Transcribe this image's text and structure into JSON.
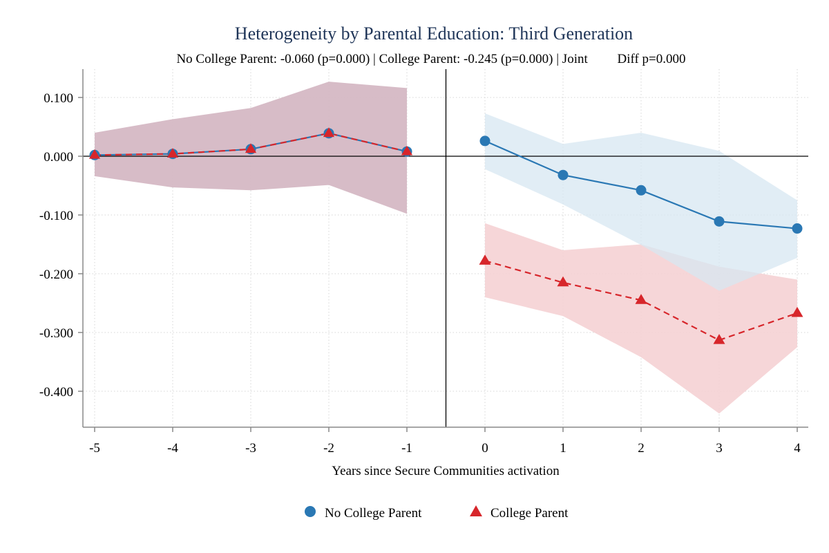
{
  "chart_data": {
    "type": "line",
    "title": "Heterogeneity by Parental Education: Third Generation",
    "subtitle_parts": [
      "No College Parent: -0.060 (p=0.000)",
      "College Parent: -0.245 (p=0.000)",
      "Joint",
      "Diff p=0.000"
    ],
    "xlabel": "Years since Secure Communities activation",
    "ylabel": "",
    "x": [
      -5,
      -4,
      -3,
      -2,
      -1,
      0,
      1,
      2,
      3,
      4
    ],
    "x_ticks": [
      "-5",
      "-4",
      "-3",
      "-2",
      "-1",
      "0",
      "1",
      "2",
      "3",
      "4"
    ],
    "y_ticks": [
      "0.100",
      "0.000",
      "-0.100",
      "-0.200",
      "-0.300",
      "-0.400"
    ],
    "y_tick_values": [
      0.1,
      0.0,
      -0.1,
      -0.2,
      -0.3,
      -0.4
    ],
    "xlim": [
      -5.15,
      4.15
    ],
    "ylim": [
      -0.462,
      0.147
    ],
    "reference_lines": {
      "y": 0,
      "x": -0.5
    },
    "grid": true,
    "legend_position": "bottom",
    "pre_period": {
      "x": [
        -5,
        -4,
        -3,
        -2,
        -1
      ],
      "values": [
        0.002,
        0.004,
        0.012,
        0.039,
        0.008
      ],
      "ci_low": [
        -0.034,
        -0.053,
        -0.058,
        -0.049,
        -0.098
      ],
      "ci_high": [
        0.04,
        0.063,
        0.082,
        0.127,
        0.116
      ],
      "ci_color": "#d5b8c4"
    },
    "series": [
      {
        "name": "No College Parent",
        "marker": "circle",
        "line_style": "solid",
        "color": "#2a78b4",
        "ci_color": "#d7e7f2",
        "x": [
          0,
          1,
          2,
          3,
          4
        ],
        "values": [
          0.026,
          -0.032,
          -0.058,
          -0.111,
          -0.123
        ],
        "ci_low": [
          -0.022,
          -0.082,
          -0.151,
          -0.229,
          -0.173
        ],
        "ci_high": [
          0.073,
          0.021,
          0.04,
          0.009,
          -0.075
        ]
      },
      {
        "name": "College Parent",
        "marker": "triangle",
        "line_style": "dashed",
        "color": "#d7262b",
        "ci_color": "#f5d1d4",
        "x": [
          0,
          1,
          2,
          3,
          4
        ],
        "values": [
          -0.178,
          -0.215,
          -0.245,
          -0.313,
          -0.267
        ],
        "ci_low": [
          -0.24,
          -0.272,
          -0.342,
          -0.438,
          -0.325
        ],
        "ci_high": [
          -0.114,
          -0.16,
          -0.15,
          -0.188,
          -0.21
        ]
      }
    ]
  }
}
